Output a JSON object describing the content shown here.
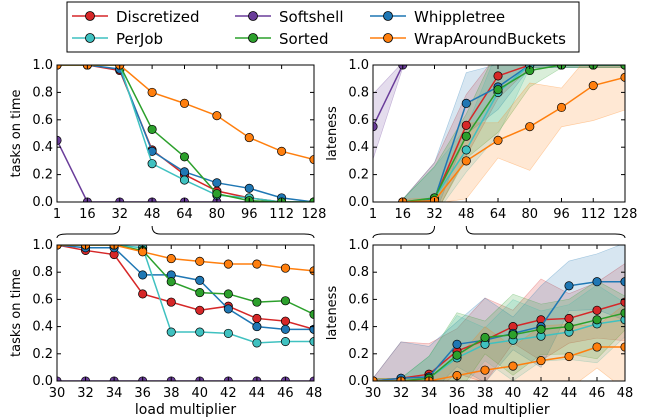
{
  "legend": {
    "placement": "top-center",
    "entries": [
      {
        "label": "Discretized",
        "color": "#d62728"
      },
      {
        "label": "Softshell",
        "color": "#6a3d9a"
      },
      {
        "label": "Whippletree",
        "color": "#1f77b4"
      },
      {
        "label": "PerJob",
        "color": "#3fc1c0"
      },
      {
        "label": "Sorted",
        "color": "#2ca02c"
      },
      {
        "label": "WrapAroundBuckets",
        "color": "#ff7f0e"
      }
    ]
  },
  "chart_data": [
    {
      "type": "line",
      "panel": "top-left",
      "xlabel": "",
      "ylabel": "tasks on time",
      "xticks": [
        "1",
        "16",
        "32",
        "48",
        "64",
        "80",
        "96",
        "112",
        "128"
      ],
      "yticks": [
        "0.0",
        "0.2",
        "0.4",
        "0.6",
        "0.8",
        "1.0"
      ],
      "xlim": [
        1,
        128
      ],
      "ylim": [
        0,
        1
      ],
      "x": [
        1,
        16,
        32,
        48,
        64,
        80,
        96,
        112,
        128
      ],
      "series": [
        {
          "name": "Discretized",
          "values": [
            1.0,
            1.0,
            0.96,
            0.38,
            0.2,
            0.08,
            0.03,
            0.0,
            0.0
          ]
        },
        {
          "name": "Softshell",
          "values": [
            0.45,
            0.0,
            0.0,
            0.0,
            0.0,
            0.0,
            0.0,
            0.0,
            0.0
          ]
        },
        {
          "name": "Whippletree",
          "values": [
            1.0,
            1.0,
            0.97,
            0.37,
            0.22,
            0.14,
            0.1,
            0.03,
            0.0
          ]
        },
        {
          "name": "PerJob",
          "values": [
            1.0,
            1.0,
            1.0,
            0.28,
            0.16,
            0.05,
            0.03,
            0.0,
            0.0
          ]
        },
        {
          "name": "Sorted",
          "values": [
            1.0,
            1.0,
            1.0,
            0.53,
            0.33,
            0.06,
            0.01,
            0.0,
            0.0
          ]
        },
        {
          "name": "WrapAroundBuckets",
          "values": [
            1.0,
            1.0,
            1.0,
            0.8,
            0.72,
            0.63,
            0.47,
            0.37,
            0.31
          ]
        }
      ]
    },
    {
      "type": "line",
      "panel": "top-right",
      "xlabel": "",
      "ylabel": "lateness",
      "xticks": [
        "1",
        "16",
        "32",
        "48",
        "64",
        "80",
        "96",
        "112",
        "128"
      ],
      "yticks": [
        "0.0",
        "0.2",
        "0.4",
        "0.6",
        "0.8",
        "1.0"
      ],
      "xlim": [
        1,
        128
      ],
      "ylim": [
        0,
        1
      ],
      "x": [
        1,
        16,
        32,
        48,
        64,
        80,
        96,
        112,
        128
      ],
      "shaded_ranges": true,
      "series": [
        {
          "name": "Discretized",
          "values": [
            null,
            0.0,
            0.02,
            0.56,
            0.92,
            1.0,
            1.0,
            1.0,
            1.0
          ]
        },
        {
          "name": "Softshell",
          "values": [
            0.55,
            1.0,
            null,
            null,
            null,
            null,
            null,
            null,
            null
          ]
        },
        {
          "name": "Whippletree",
          "values": [
            null,
            0.0,
            0.02,
            0.72,
            0.84,
            1.0,
            1.0,
            1.0,
            1.0
          ]
        },
        {
          "name": "PerJob",
          "values": [
            null,
            0.0,
            0.03,
            0.38,
            0.8,
            1.0,
            1.0,
            1.0,
            1.0
          ]
        },
        {
          "name": "Sorted",
          "values": [
            null,
            0.0,
            0.03,
            0.48,
            0.82,
            0.96,
            1.0,
            1.0,
            1.0
          ]
        },
        {
          "name": "WrapAroundBuckets",
          "values": [
            null,
            0.0,
            0.01,
            0.3,
            0.45,
            0.55,
            0.69,
            0.85,
            0.91
          ]
        }
      ]
    },
    {
      "type": "line",
      "panel": "bottom-left",
      "xlabel": "load multiplier",
      "ylabel": "tasks on time",
      "xticks": [
        "30",
        "32",
        "34",
        "36",
        "38",
        "40",
        "42",
        "44",
        "46",
        "48"
      ],
      "yticks": [
        "0.0",
        "0.2",
        "0.4",
        "0.6",
        "0.8",
        "1.0"
      ],
      "xlim": [
        30,
        48
      ],
      "ylim": [
        0,
        1
      ],
      "x": [
        30,
        32,
        34,
        36,
        38,
        40,
        42,
        44,
        46,
        48
      ],
      "series": [
        {
          "name": "Discretized",
          "values": [
            1.0,
            0.96,
            0.93,
            0.64,
            0.58,
            0.52,
            0.55,
            0.46,
            0.44,
            0.38
          ]
        },
        {
          "name": "Softshell",
          "values": [
            0.0,
            0.0,
            0.0,
            0.0,
            0.0,
            0.0,
            0.0,
            0.0,
            0.0,
            0.0
          ]
        },
        {
          "name": "Whippletree",
          "values": [
            1.0,
            0.98,
            0.98,
            0.78,
            0.78,
            0.74,
            0.53,
            0.4,
            0.38,
            0.38
          ]
        },
        {
          "name": "PerJob",
          "values": [
            1.0,
            1.0,
            1.0,
            0.98,
            0.36,
            0.36,
            0.35,
            0.28,
            0.29,
            0.29
          ]
        },
        {
          "name": "Sorted",
          "values": [
            1.0,
            1.0,
            1.0,
            0.96,
            0.73,
            0.65,
            0.64,
            0.58,
            0.59,
            0.49
          ]
        },
        {
          "name": "WrapAroundBuckets",
          "values": [
            1.0,
            1.0,
            1.0,
            0.95,
            0.9,
            0.88,
            0.86,
            0.86,
            0.83,
            0.81
          ]
        }
      ]
    },
    {
      "type": "line",
      "panel": "bottom-right",
      "xlabel": "load multiplier",
      "ylabel": "lateness",
      "xticks": [
        "30",
        "32",
        "34",
        "36",
        "38",
        "40",
        "42",
        "44",
        "46",
        "48"
      ],
      "yticks": [
        "0.0",
        "0.2",
        "0.4",
        "0.6",
        "0.8",
        "1.0"
      ],
      "xlim": [
        30,
        48
      ],
      "ylim": [
        0,
        1
      ],
      "x": [
        30,
        32,
        34,
        36,
        38,
        40,
        42,
        44,
        46,
        48
      ],
      "shaded_ranges": true,
      "series": [
        {
          "name": "Discretized",
          "values": [
            0.0,
            0.02,
            0.05,
            0.22,
            0.3,
            0.4,
            0.45,
            0.46,
            0.52,
            0.58
          ]
        },
        {
          "name": "Softshell",
          "values": [
            null,
            null,
            null,
            null,
            null,
            null,
            null,
            null,
            null,
            null
          ]
        },
        {
          "name": "Whippletree",
          "values": [
            0.0,
            0.02,
            0.03,
            0.27,
            0.3,
            0.35,
            0.4,
            0.7,
            0.73,
            0.73
          ]
        },
        {
          "name": "PerJob",
          "values": [
            0.0,
            0.0,
            0.02,
            0.17,
            0.27,
            0.3,
            0.33,
            0.36,
            0.42,
            0.45
          ]
        },
        {
          "name": "Sorted",
          "values": [
            0.0,
            0.0,
            0.02,
            0.19,
            0.32,
            0.34,
            0.38,
            0.4,
            0.45,
            0.5
          ]
        },
        {
          "name": "WrapAroundBuckets",
          "values": [
            0.0,
            0.0,
            0.0,
            0.04,
            0.08,
            0.11,
            0.15,
            0.18,
            0.25,
            0.25
          ]
        }
      ]
    }
  ]
}
